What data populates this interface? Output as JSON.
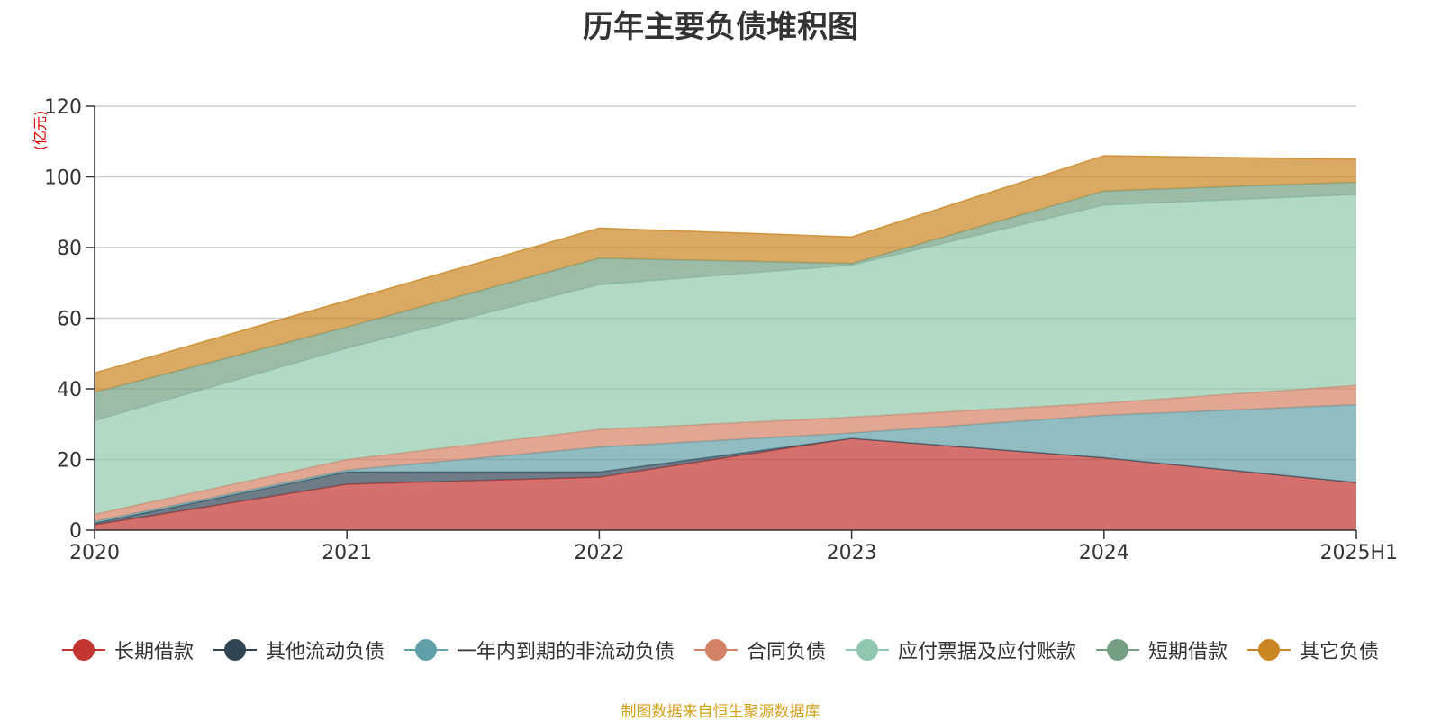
{
  "chart_data": {
    "type": "area",
    "stacked": true,
    "title": "历年主要负债堆积图",
    "unit": "(亿元)",
    "x": [
      "2020",
      "2021",
      "2022",
      "2023",
      "2024",
      "2025H1"
    ],
    "ylim": [
      0,
      120
    ],
    "yticks": [
      0,
      20,
      40,
      60,
      80,
      100,
      120
    ],
    "grid": true,
    "legend_position": "bottom",
    "series": [
      {
        "name": "长期借款",
        "color": "#c23531",
        "values": [
          1.5,
          13,
          15,
          26,
          20.5,
          13.5
        ]
      },
      {
        "name": "其他流动负债",
        "color": "#2f4554",
        "values": [
          0.5,
          3.5,
          1.5,
          0,
          0,
          0
        ]
      },
      {
        "name": "一年内到期的非流动负债",
        "color": "#61a0a8",
        "values": [
          0.5,
          0.5,
          7,
          1.5,
          12,
          22
        ]
      },
      {
        "name": "合同负债",
        "color": "#d48265",
        "values": [
          2,
          3,
          5,
          4.5,
          3.5,
          5.5
        ]
      },
      {
        "name": "应付票据及应付账款",
        "color": "#91c7ae",
        "values": [
          26.5,
          31.5,
          41,
          43,
          56,
          54
        ]
      },
      {
        "name": "短期借款",
        "color": "#749f83",
        "values": [
          8,
          6,
          7.5,
          0.5,
          4,
          3.5
        ]
      },
      {
        "name": "其它负债",
        "color": "#ca8622",
        "values": [
          5.5,
          7.5,
          8.5,
          7.5,
          10,
          6.5
        ]
      }
    ]
  },
  "source_note": "制图数据来自恒生聚源数据库"
}
